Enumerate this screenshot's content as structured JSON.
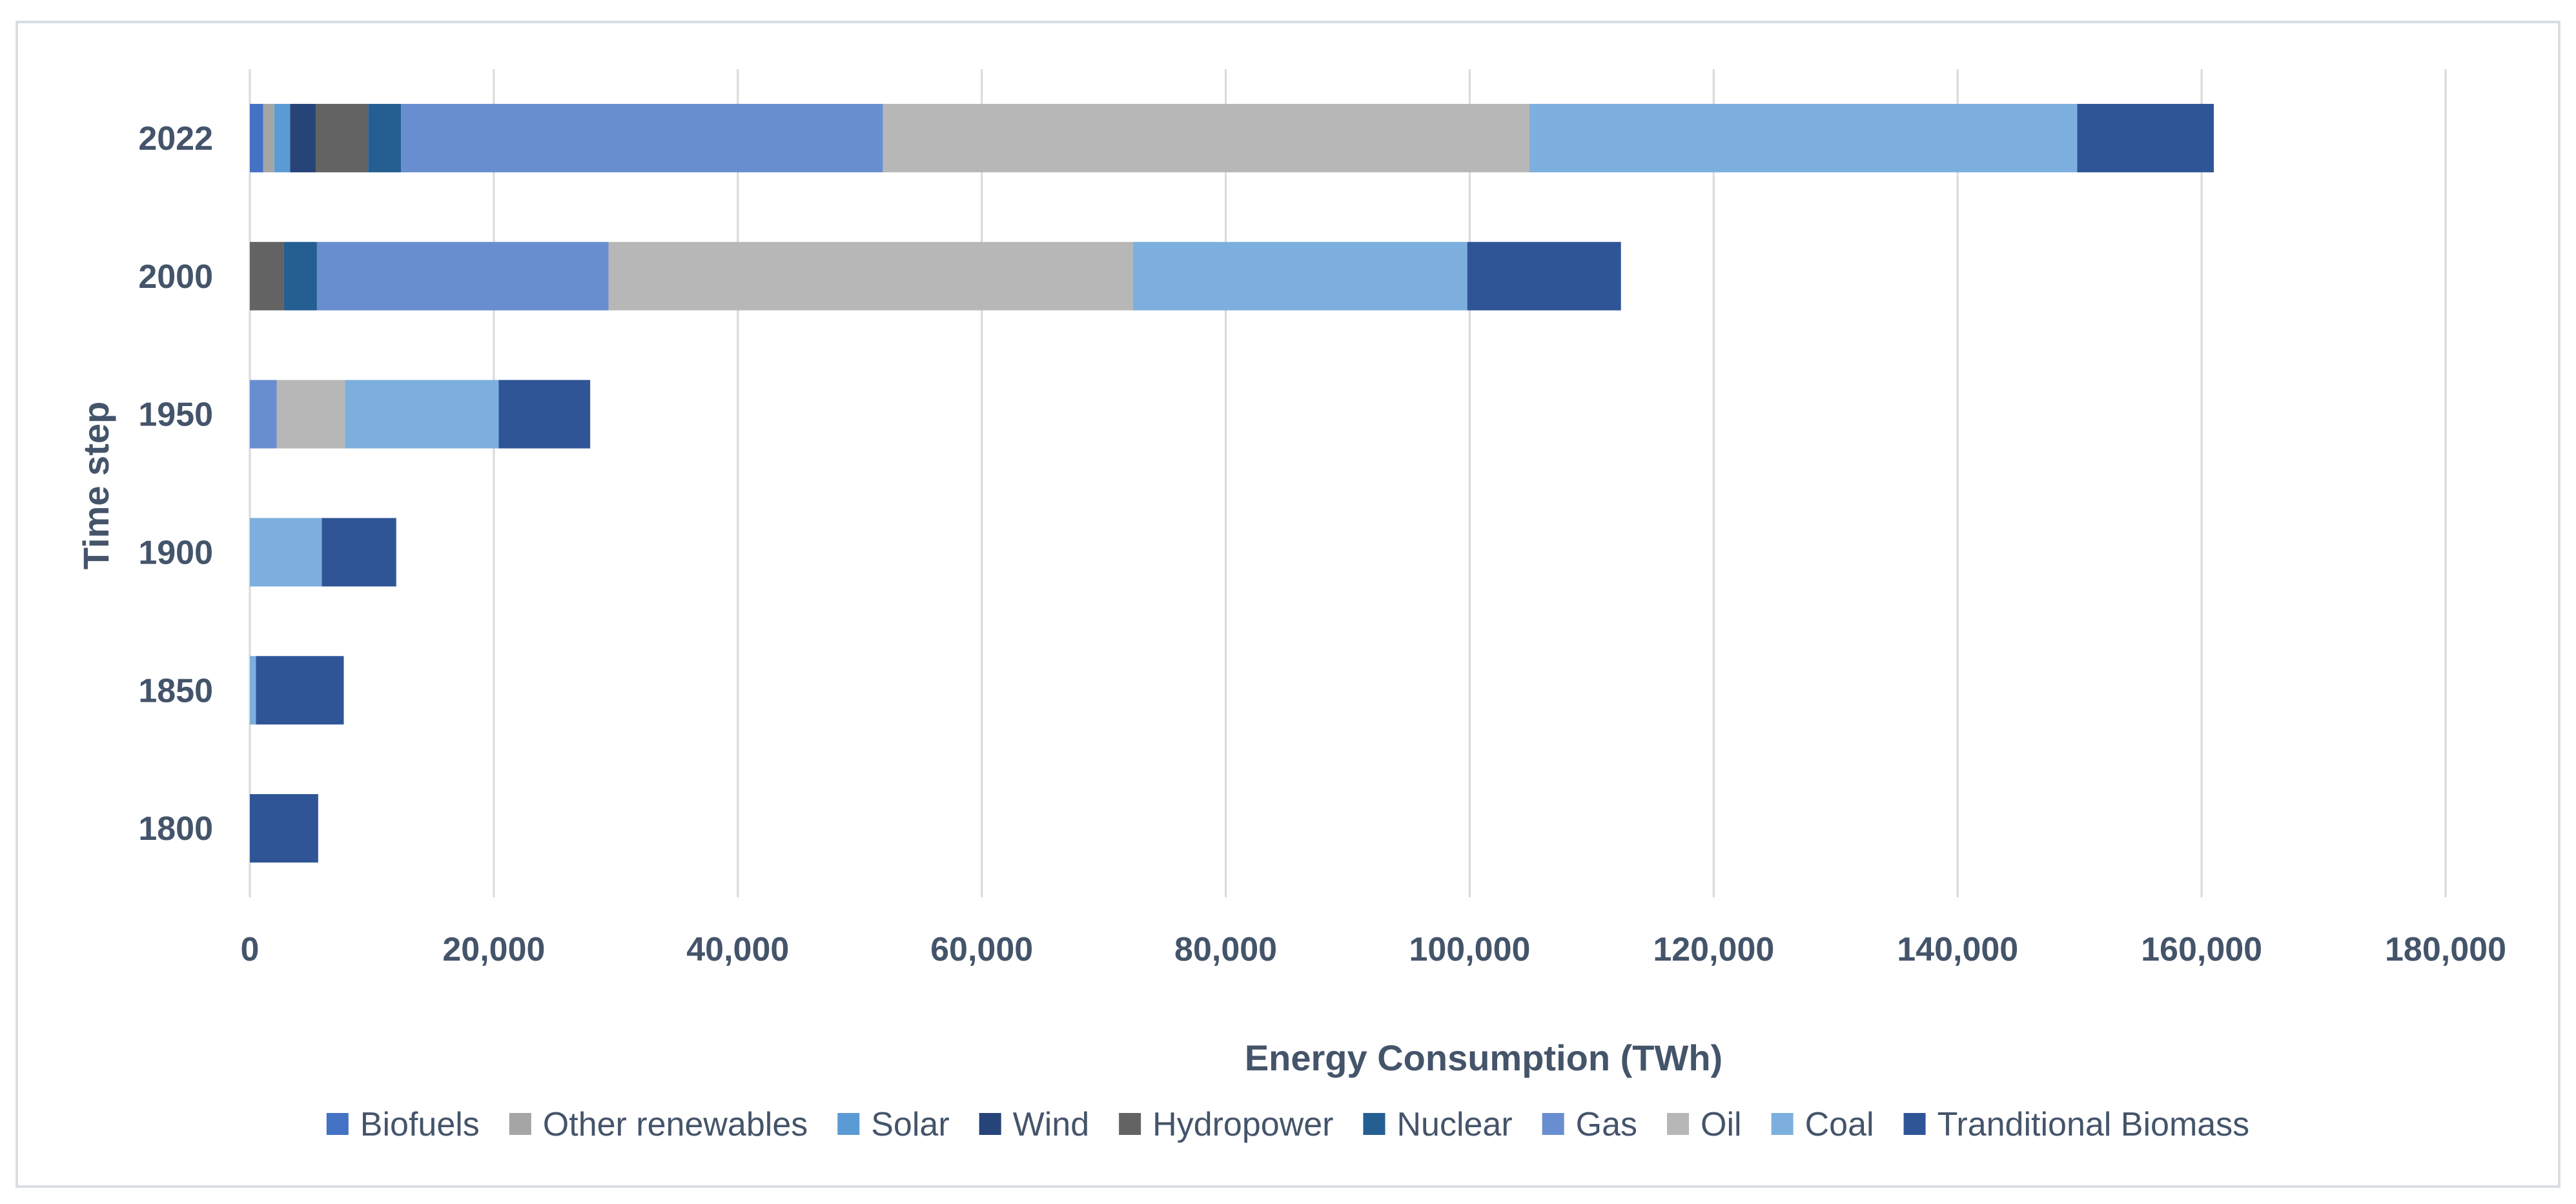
{
  "chart_data": {
    "type": "bar",
    "orientation": "horizontal",
    "stacked": true,
    "title": "",
    "xlabel": "Energy Consumption (TWh)",
    "ylabel": "Time step",
    "categories": [
      "1800",
      "1850",
      "1900",
      "1950",
      "2000",
      "2022"
    ],
    "xlim": [
      0,
      180000
    ],
    "xticks": [
      0,
      20000,
      40000,
      60000,
      80000,
      100000,
      120000,
      140000,
      160000,
      180000
    ],
    "xtick_labels": [
      "0",
      "20,000",
      "40,000",
      "60,000",
      "80,000",
      "100,000",
      "120,000",
      "140,000",
      "160,000",
      "180,000"
    ],
    "grid": "vertical",
    "legend_position": "bottom",
    "series": [
      {
        "name": "Biofuels",
        "color": "#4472c4",
        "values": [
          0,
          0,
          0,
          0,
          0,
          1100
        ]
      },
      {
        "name": "Other renewables",
        "color": "#a5a5a5",
        "values": [
          0,
          0,
          0,
          0,
          0,
          900
        ]
      },
      {
        "name": "Solar",
        "color": "#5b9bd5",
        "values": [
          0,
          0,
          0,
          0,
          0,
          1300
        ]
      },
      {
        "name": "Wind",
        "color": "#264478",
        "values": [
          0,
          0,
          0,
          0,
          0,
          2100
        ]
      },
      {
        "name": "Hydropower",
        "color": "#636363",
        "values": [
          0,
          0,
          0,
          0,
          2800,
          4300
        ]
      },
      {
        "name": "Nuclear",
        "color": "#255e91",
        "values": [
          0,
          0,
          0,
          0,
          2700,
          2700
        ]
      },
      {
        "name": "Gas",
        "color": "#698ed0",
        "values": [
          0,
          0,
          0,
          2200,
          23900,
          39500
        ]
      },
      {
        "name": "Oil",
        "color": "#b7b7b7",
        "values": [
          0,
          0,
          0,
          5600,
          43000,
          53000
        ]
      },
      {
        "name": "Coal",
        "color": "#7cafdd",
        "values": [
          0,
          500,
          5900,
          12600,
          27400,
          44900
        ]
      },
      {
        "name": "Tranditional Biomass",
        "color": "#2f5597",
        "values": [
          5600,
          7200,
          6100,
          7500,
          12600,
          11200
        ]
      }
    ]
  }
}
